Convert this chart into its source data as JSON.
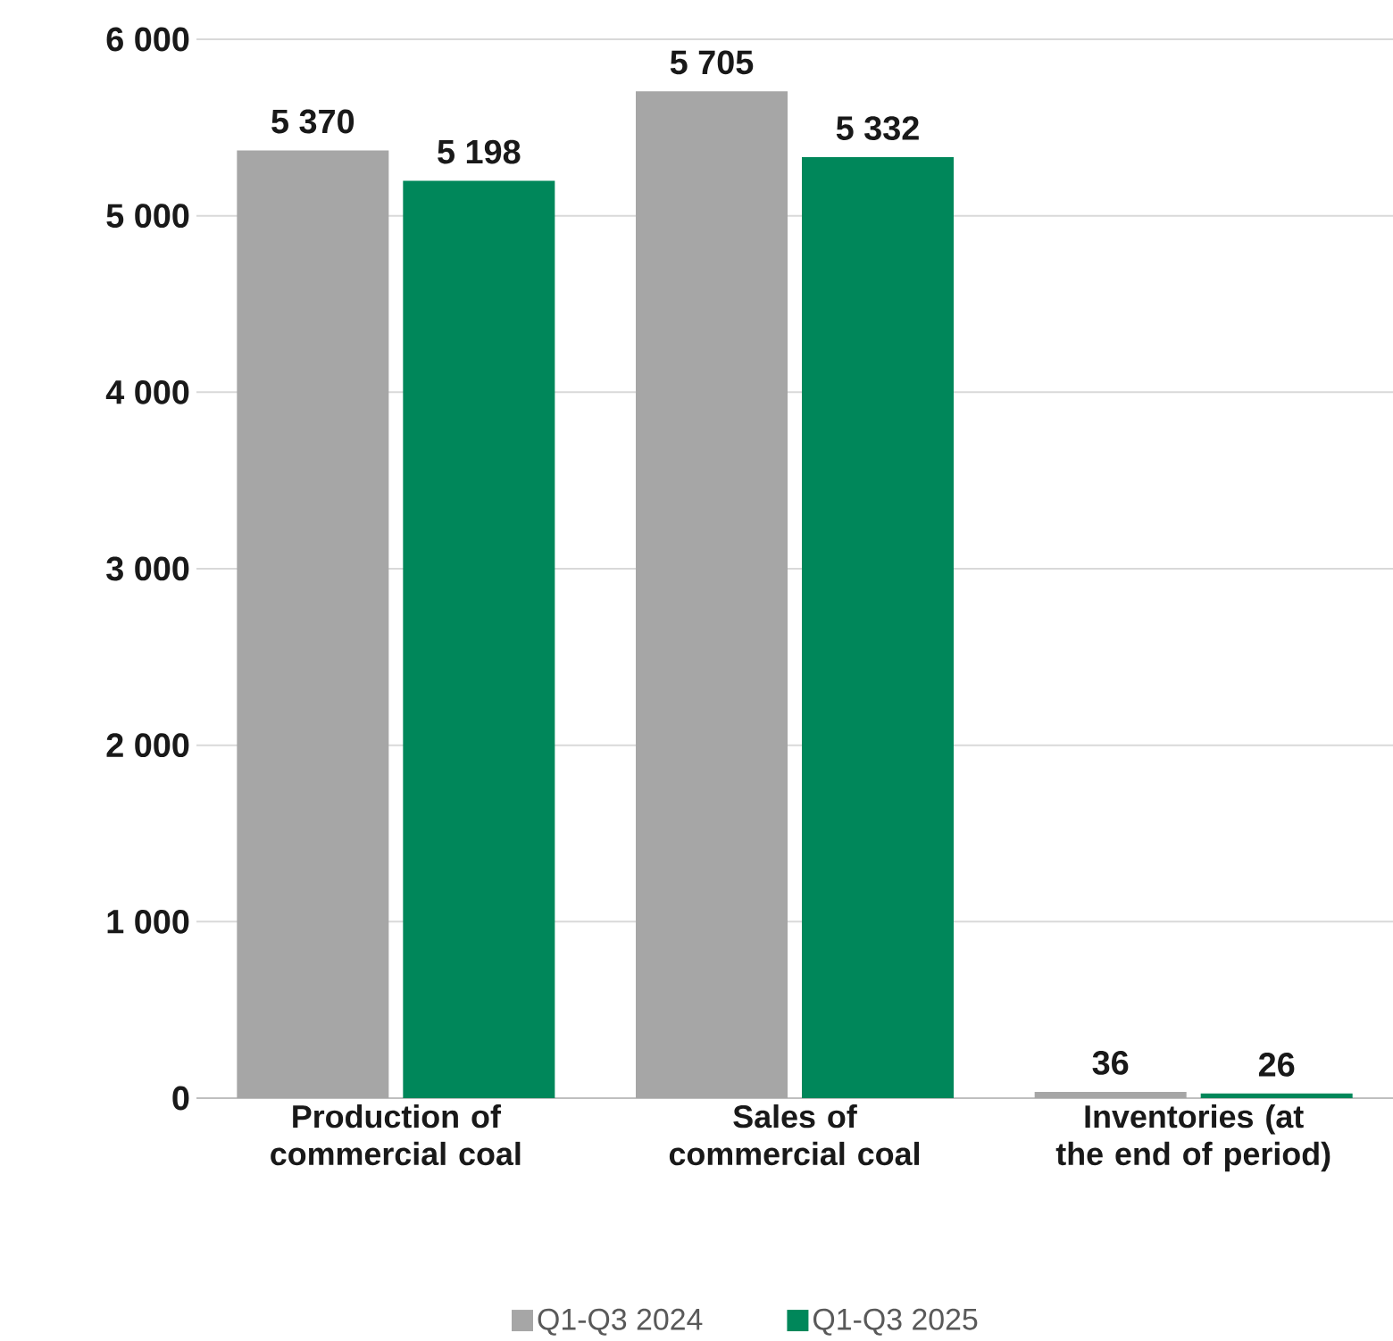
{
  "chart_data": {
    "type": "bar",
    "categories": [
      "Production of commercial coal",
      "Sales of commercial coal",
      "Inventories (at the end of period)"
    ],
    "series": [
      {
        "name": "Q1-Q3 2024",
        "color": "#a6a6a6",
        "values": [
          5370,
          5705,
          36
        ],
        "value_labels": [
          "5 370",
          "5 705",
          "36"
        ]
      },
      {
        "name": "Q1-Q3 2025",
        "color": "#00875a",
        "values": [
          5198,
          5332,
          26
        ],
        "value_labels": [
          "5 198",
          "5 332",
          "26"
        ]
      }
    ],
    "ylim": [
      0,
      6000
    ],
    "yticks": [
      {
        "value": 0,
        "label": "0"
      },
      {
        "value": 1000,
        "label": "1 000"
      },
      {
        "value": 2000,
        "label": "2 000"
      },
      {
        "value": 3000,
        "label": "3 000"
      },
      {
        "value": 4000,
        "label": "4 000"
      },
      {
        "value": 5000,
        "label": "5 000"
      },
      {
        "value": 6000,
        "label": "6 000"
      }
    ],
    "grid": "y",
    "legend": "bottom"
  }
}
